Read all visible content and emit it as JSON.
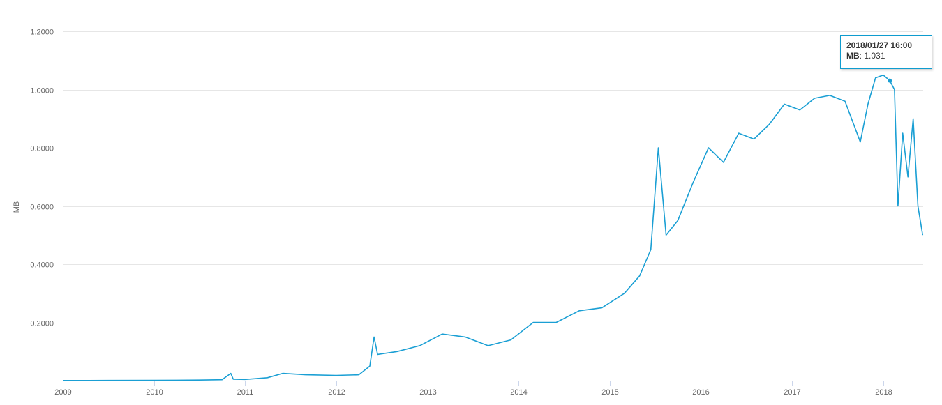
{
  "chart_data": {
    "type": "line",
    "title": "",
    "xlabel": "",
    "ylabel": "MB",
    "ylim": [
      0,
      1.2
    ],
    "xlim": [
      "2009-01-01",
      "2018-06-10"
    ],
    "y_ticks": [
      "0.2000",
      "0.4000",
      "0.6000",
      "0.8000",
      "1.0000",
      "1.2000"
    ],
    "x_ticks": [
      "2009",
      "2010",
      "2011",
      "2012",
      "2013",
      "2014",
      "2015",
      "2016",
      "2017",
      "2018"
    ],
    "grid": "horizontal",
    "series": [
      {
        "color": "#1a9fd4",
        "x": [
          "2009-01-01",
          "2009-07-01",
          "2010-01-01",
          "2010-07-01",
          "2010-10-01",
          "2010-11-05",
          "2010-11-15",
          "2011-01-01",
          "2011-04-01",
          "2011-06-01",
          "2011-09-01",
          "2012-01-01",
          "2012-04-01",
          "2012-05-15",
          "2012-06-01",
          "2012-06-15",
          "2012-09-01",
          "2012-12-01",
          "2013-03-01",
          "2013-06-01",
          "2013-09-01",
          "2013-12-01",
          "2014-03-01",
          "2014-06-01",
          "2014-09-01",
          "2014-12-01",
          "2015-03-01",
          "2015-05-01",
          "2015-06-15",
          "2015-07-15",
          "2015-08-15",
          "2015-10-01",
          "2015-12-01",
          "2016-02-01",
          "2016-04-01",
          "2016-06-01",
          "2016-08-01",
          "2016-10-01",
          "2016-12-01",
          "2017-02-01",
          "2017-04-01",
          "2017-06-01",
          "2017-08-01",
          "2017-10-01",
          "2017-11-01",
          "2017-12-01",
          "2018-01-01",
          "2018-01-27",
          "2018-02-15",
          "2018-03-01",
          "2018-03-20",
          "2018-04-10",
          "2018-05-01",
          "2018-05-20",
          "2018-06-08"
        ],
        "y": [
          0.0005,
          0.0008,
          0.001,
          0.002,
          0.003,
          0.025,
          0.005,
          0.004,
          0.01,
          0.025,
          0.02,
          0.018,
          0.02,
          0.05,
          0.15,
          0.09,
          0.1,
          0.12,
          0.16,
          0.15,
          0.12,
          0.14,
          0.2,
          0.2,
          0.24,
          0.25,
          0.3,
          0.36,
          0.45,
          0.8,
          0.5,
          0.55,
          0.68,
          0.8,
          0.75,
          0.85,
          0.83,
          0.88,
          0.95,
          0.93,
          0.97,
          0.98,
          0.96,
          0.82,
          0.95,
          1.04,
          1.05,
          1.031,
          1.0,
          0.6,
          0.85,
          0.7,
          0.9,
          0.6,
          0.5
        ]
      }
    ]
  },
  "tooltip": {
    "title": "2018/01/27 16:00",
    "series_label": "MB",
    "value": "1.031"
  }
}
